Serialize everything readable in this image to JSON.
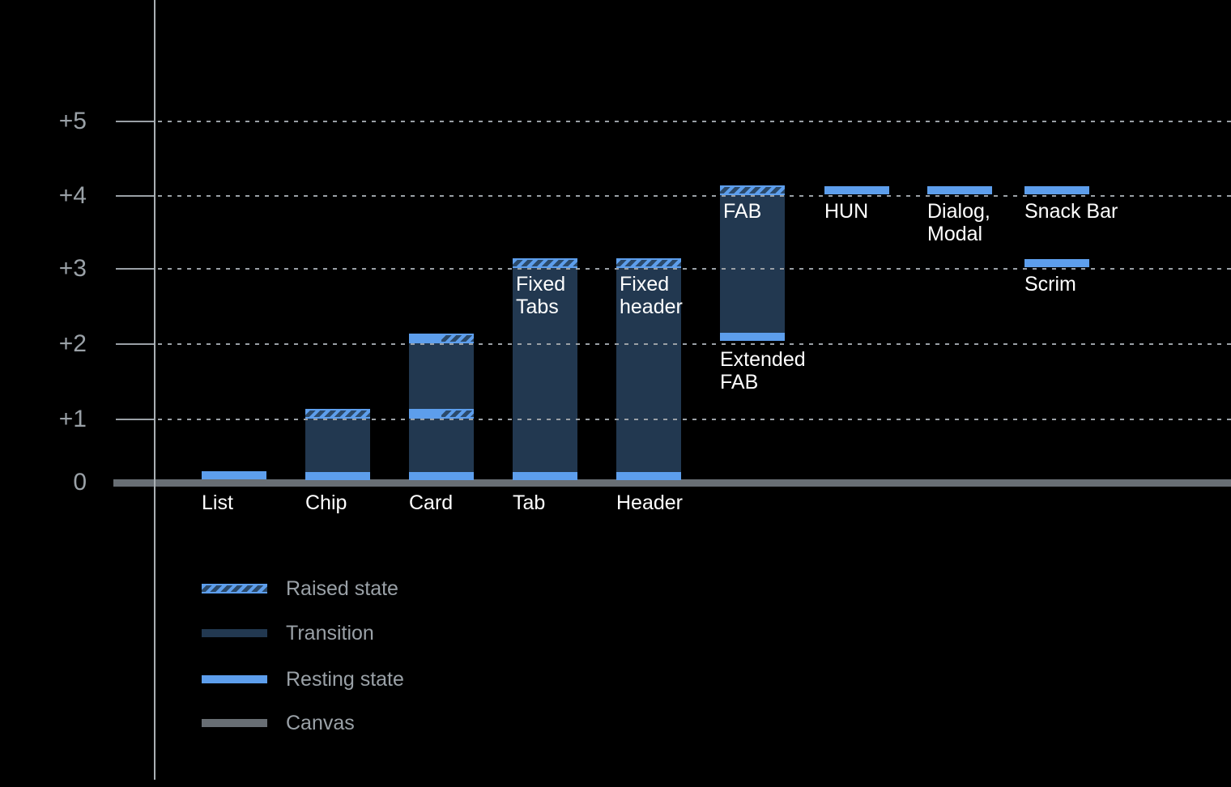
{
  "chart_data": {
    "type": "bar",
    "title": "",
    "description": "Material-style elevation diagram on dark canvas showing UI component elevation levels",
    "grid": "dotted horizontal lines at each elevation level",
    "ylim": [
      0,
      5
    ],
    "y_axis": {
      "ticks": [
        {
          "level": 5,
          "label": "+5"
        },
        {
          "level": 4,
          "label": "+4"
        },
        {
          "level": 3,
          "label": "+3"
        },
        {
          "level": 2,
          "label": "+2"
        },
        {
          "level": 1,
          "label": "+1"
        },
        {
          "level": 0,
          "label": "0"
        }
      ]
    },
    "elements": [
      {
        "name": "list",
        "axis_label": "List",
        "resting": 0
      },
      {
        "name": "chip",
        "axis_label": "Chip",
        "resting": 0,
        "raised": 1,
        "bar": {
          "from": 0,
          "to": 1
        }
      },
      {
        "name": "card",
        "axis_label": "Card",
        "resting": 0,
        "split_levels": [
          1,
          2
        ],
        "bar": {
          "from": 0,
          "to": 2
        }
      },
      {
        "name": "tab",
        "axis_label": "Tab",
        "inner_label": "Fixed\nTabs",
        "resting": 0,
        "raised": 3,
        "bar": {
          "from": 0,
          "to": 3
        }
      },
      {
        "name": "header",
        "axis_label": "Header",
        "inner_label": "Fixed\nheader",
        "resting": 0,
        "raised": 3,
        "bar": {
          "from": 0,
          "to": 3
        }
      },
      {
        "name": "fab",
        "caption": "Extended\nFAB",
        "inner_label": "FAB",
        "resting": 2,
        "raised": 4,
        "bar": {
          "from": 2,
          "to": 4
        }
      },
      {
        "name": "hun",
        "caption": "HUN",
        "resting": 4
      },
      {
        "name": "dialog-modal",
        "caption": "Dialog,\nModal",
        "resting": 4
      },
      {
        "name": "snack-bar",
        "caption": "Snack Bar",
        "resting": 4
      },
      {
        "name": "scrim",
        "caption": "Scrim",
        "resting": 3
      }
    ],
    "legend": [
      {
        "swatch": "raised",
        "label": "Raised state"
      },
      {
        "swatch": "transition",
        "label": "Transition"
      },
      {
        "swatch": "resting",
        "label": "Resting state"
      },
      {
        "swatch": "canvas",
        "label": "Canvas"
      }
    ],
    "legend_position": "bottom-left",
    "colors": {
      "background": "#000000",
      "resting_state": "#5d9eec",
      "transition": "#223850",
      "raised_hatch_bg": "#2b4a6b",
      "canvas": "#686e74",
      "gridline": "#9aa0a6",
      "axis_line": "#aab0b5",
      "gray_text": "#9aa1a7",
      "white_text": "#ffffff"
    }
  }
}
